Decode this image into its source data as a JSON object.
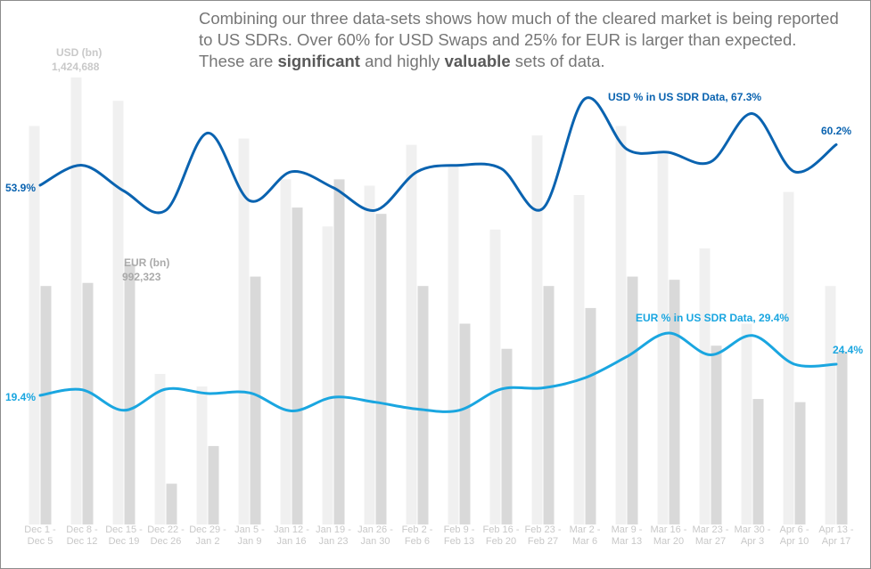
{
  "caption": {
    "part1": "Combining our three data-sets shows how much of the cleared market is being reported to US SDRs. Over 60% for USD Swaps and 25% for EUR is larger than expected. These are ",
    "bold1": "significant",
    "part2": " and highly ",
    "bold2": "valuable",
    "part3": " sets of data."
  },
  "chart_data": {
    "type": "bar",
    "categories": [
      [
        "Dec 1 -",
        "Dec 5"
      ],
      [
        "Dec 8 -",
        "Dec 12"
      ],
      [
        "Dec 15 -",
        "Dec 19"
      ],
      [
        "Dec 22 -",
        "Dec 26"
      ],
      [
        "Dec 29 -",
        "Jan 2"
      ],
      [
        "Jan 5 -",
        "Jan 9"
      ],
      [
        "Jan 12 -",
        "Jan 16"
      ],
      [
        "Jan 19 -",
        "Jan 23"
      ],
      [
        "Jan 26 -",
        "Jan 30"
      ],
      [
        "Feb 2 -",
        "Feb 6"
      ],
      [
        "Feb 9 -",
        "Feb 13"
      ],
      [
        "Feb 16 -",
        "Feb 20"
      ],
      [
        "Feb 23 -",
        "Feb 27"
      ],
      [
        "Mar 2 -",
        "Mar 6"
      ],
      [
        "Mar 9 -",
        "Mar 13"
      ],
      [
        "Mar 16 -",
        "Mar 20"
      ],
      [
        "Mar 23 -",
        "Mar 27"
      ],
      [
        "Mar 30 -",
        "Apr 3"
      ],
      [
        "Apr 6 -",
        "Apr 10"
      ],
      [
        "Apr 13 -",
        "Apr 17"
      ]
    ],
    "bar_series": [
      {
        "name": "USD (bn)",
        "color": "#f0f0f0",
        "values": [
          1270000,
          1424688,
          1350000,
          480000,
          440000,
          1230000,
          1100000,
          950000,
          1080000,
          1210000,
          1140000,
          940000,
          1240000,
          1050000,
          1270000,
          1180000,
          880000,
          640000,
          1060000,
          760000
        ]
      },
      {
        "name": "EUR (bn)",
        "color": "#d9d9d9",
        "values": [
          760000,
          770000,
          830000,
          130000,
          250000,
          790000,
          1010000,
          1100000,
          990000,
          760000,
          640000,
          560000,
          760000,
          690000,
          790000,
          780000,
          570000,
          400000,
          390000,
          550000
        ]
      }
    ],
    "line_series": [
      {
        "name": "USD % in US SDR Data",
        "color": "#0a63b0",
        "values": [
          53.9,
          57.0,
          53.0,
          50.0,
          62.0,
          51.5,
          56.0,
          53.5,
          50.0,
          56.0,
          57.0,
          56.5,
          50.3,
          67.3,
          59.5,
          59.0,
          57.5,
          65.0,
          56.0,
          60.2
        ]
      },
      {
        "name": "EUR % in US SDR Data",
        "color": "#1aa6e0",
        "values": [
          19.4,
          20.3,
          17.0,
          20.4,
          19.7,
          19.8,
          16.9,
          19.1,
          18.3,
          17.2,
          17.0,
          20.4,
          20.6,
          22.2,
          25.6,
          29.4,
          25.9,
          29.0,
          24.4,
          24.4
        ]
      }
    ],
    "annotations": {
      "usd_bar_label": "USD (bn)",
      "usd_bar_peak": "1,424,688",
      "eur_bar_label": "EUR (bn)",
      "eur_bar_value": "992,323",
      "usd_line_label": "USD % in US SDR Data, 67.3%",
      "usd_line_start": "53.9%",
      "usd_line_end": "60.2%",
      "eur_line_label": "EUR % in US SDR Data, 29.4%",
      "eur_line_start": "19.4%",
      "eur_line_end": "24.4%"
    },
    "grid": false,
    "legend": "none"
  }
}
